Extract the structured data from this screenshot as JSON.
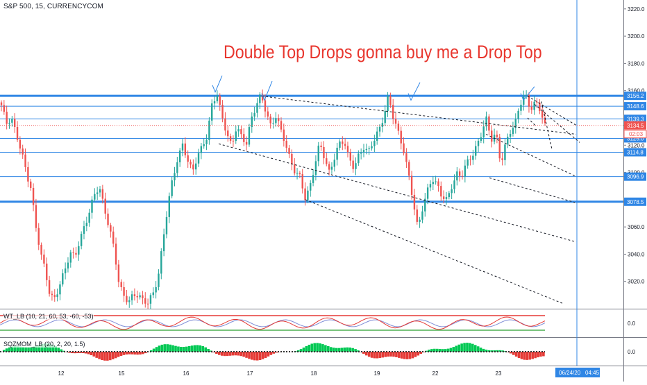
{
  "header": {
    "symbol_line": "S&P 500, 15, CURRENCYCOM"
  },
  "annotation": {
    "text": "Double Top Drops gonna buy me a Drop Top",
    "color": "#e8362e"
  },
  "colors": {
    "up": "#26a69a",
    "down": "#ef5350",
    "level": "#2f86e5",
    "axis_text": "#131722",
    "wt_red": "#e53935",
    "wt_blue": "#7e8cd6",
    "sqz_green": "#00c853",
    "sqz_red": "#e53935"
  },
  "chart_data": [
    {
      "type": "candlestick",
      "title": "S&P 500, 15, CURRENCYCOM",
      "xlabel": "",
      "ylabel": "",
      "ylim": [
        3000,
        3225
      ],
      "y_ticks": [
        3020.0,
        3040.0,
        3060.0,
        3080.0,
        3100.0,
        3120.0,
        3140.0,
        3160.0,
        3180.0,
        3200.0,
        3220.0
      ],
      "x_ticks": [
        "12",
        "15",
        "16",
        "17",
        "18",
        "19",
        "22",
        "23"
      ],
      "cursor_date_label": "06/24/20",
      "cursor_time_label": "04:45",
      "price_levels": [
        {
          "label": "3156.2",
          "value": 3156.2,
          "style": "bold"
        },
        {
          "label": "3148.6",
          "value": 3148.6,
          "style": "thin"
        },
        {
          "label": "3139.3",
          "value": 3139.3,
          "style": "thin"
        },
        {
          "label": "3125.0",
          "value": 3125.0,
          "style": "thin"
        },
        {
          "label": "3114.8",
          "value": 3114.8,
          "style": "thin"
        },
        {
          "label": "3096.9",
          "value": 3096.9,
          "style": "thin"
        },
        {
          "label": "3078.5",
          "value": 3078.5,
          "style": "bold"
        }
      ],
      "last_price": "3134.5",
      "countdown": "02:03",
      "close_path": [
        3148,
        3136,
        3142,
        3128,
        3115,
        3102,
        3090,
        3060,
        3040,
        3028,
        3010,
        3006,
        3018,
        3030,
        3042,
        3036,
        3050,
        3062,
        3072,
        3082,
        3090,
        3075,
        3060,
        3042,
        3020,
        3010,
        3005,
        3008,
        3012,
        3006,
        3004,
        3010,
        3025,
        3050,
        3075,
        3095,
        3112,
        3120,
        3108,
        3100,
        3114,
        3118,
        3125,
        3150,
        3160,
        3140,
        3128,
        3120,
        3135,
        3125,
        3120,
        3140,
        3150,
        3155,
        3145,
        3135,
        3142,
        3130,
        3122,
        3110,
        3100,
        3095,
        3082,
        3090,
        3105,
        3120,
        3112,
        3100,
        3110,
        3120,
        3125,
        3110,
        3102,
        3112,
        3120,
        3115,
        3122,
        3130,
        3142,
        3155,
        3140,
        3130,
        3120,
        3100,
        3080,
        3060,
        3075,
        3085,
        3095,
        3092,
        3083,
        3078,
        3090,
        3100,
        3098,
        3105,
        3112,
        3120,
        3128,
        3138,
        3125,
        3130,
        3105,
        3120,
        3132,
        3138,
        3150,
        3156,
        3148,
        3152,
        3145,
        3134
      ]
    },
    {
      "type": "line",
      "title": "WT_LB (10, 21, 60, 53, -60, -53)",
      "reference_value": "0.0"
    },
    {
      "type": "bar",
      "title": "SQZMOM_LB (20, 2, 20, 1.5)",
      "reference_value": "0.0"
    }
  ]
}
